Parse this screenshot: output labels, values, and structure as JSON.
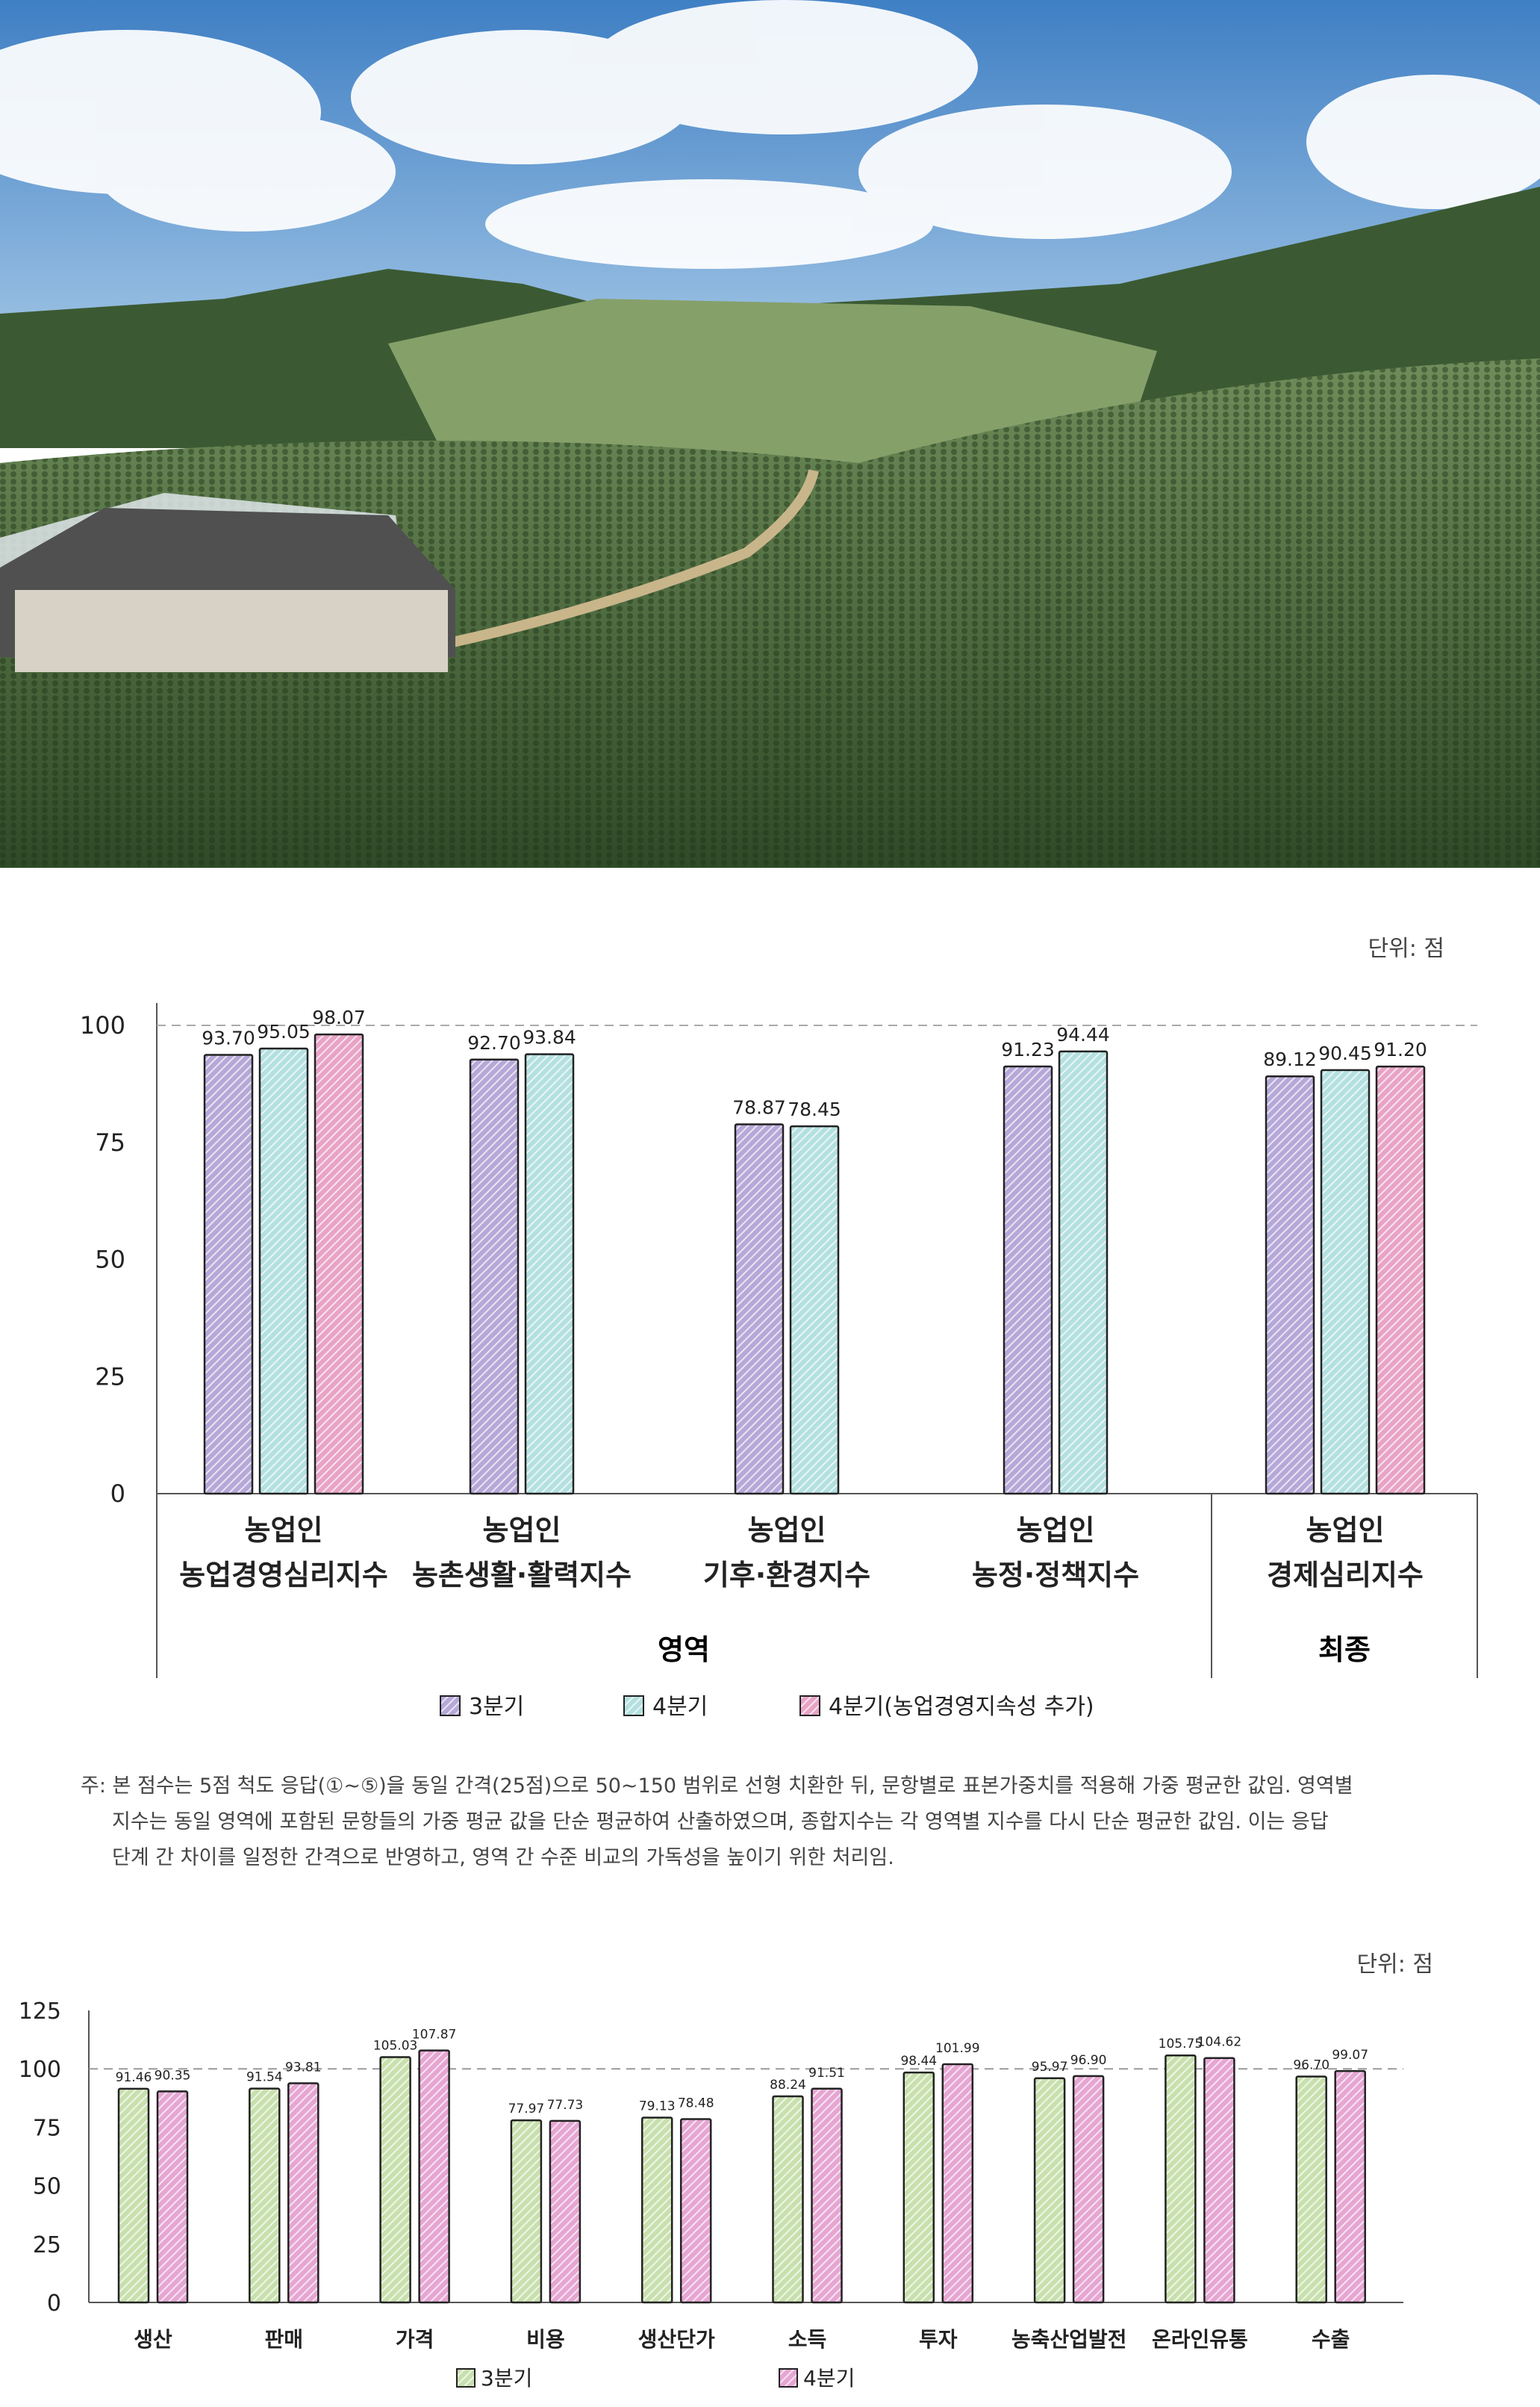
{
  "photo": {
    "subject": "cabbage-field-landscape"
  },
  "chart_data": [
    {
      "type": "bar",
      "unit_label": "단위: 점",
      "ylim": [
        0,
        100
      ],
      "yticks": [
        "0",
        "25",
        "50",
        "75",
        "100"
      ],
      "reference_line": 100,
      "grid": false,
      "legend_position": "bottom",
      "categories": [
        [
          "농업인",
          "농업경영심리지수"
        ],
        [
          "농업인",
          "농촌생활·활력지수"
        ],
        [
          "농업인",
          "기후·환경지수"
        ],
        [
          "농업인",
          "농정·정책지수"
        ],
        [
          "농업인",
          "경제심리지수"
        ]
      ],
      "groups": [
        {
          "label": "영역"
        },
        {
          "label": "최종"
        }
      ],
      "series": [
        {
          "name": "3분기",
          "color": "#b6a8d8",
          "values": [
            93.7,
            92.7,
            78.87,
            91.23,
            89.12
          ],
          "labels": [
            "93.70",
            "92.70",
            "78.87",
            "91.23",
            "89.12"
          ]
        },
        {
          "name": "4분기",
          "color": "#b4e0e0",
          "values": [
            95.05,
            93.84,
            78.45,
            94.44,
            90.45
          ],
          "labels": [
            "95.05",
            "93.84",
            "78.45",
            "94.44",
            "90.45"
          ]
        },
        {
          "name": "4분기(농업경영지속성 추가)",
          "color": "#e8a3c6",
          "values": [
            98.07,
            null,
            null,
            null,
            91.2
          ],
          "labels": [
            "98.07",
            null,
            null,
            null,
            "91.20"
          ]
        }
      ]
    },
    {
      "type": "bar",
      "unit_label": "단위: 점",
      "ylim": [
        0,
        125
      ],
      "yticks": [
        "0",
        "25",
        "50",
        "75",
        "100",
        "125"
      ],
      "reference_line": 100,
      "grid": false,
      "legend_position": "bottom",
      "categories": [
        "생산",
        "판매",
        "가격",
        "비용",
        "생산단가",
        "소득",
        "투자",
        "농축산업발전",
        "온라인유통",
        "수출"
      ],
      "series": [
        {
          "name": "3분기",
          "color": "#c8e0ae",
          "values": [
            91.46,
            91.54,
            105.03,
            77.97,
            79.13,
            88.24,
            98.44,
            95.97,
            105.75,
            96.7
          ],
          "labels": [
            "91.46",
            "91.54",
            "105.03",
            "77.97",
            "79.13",
            "88.24",
            "98.44",
            "95.97",
            "105.75",
            "96.70"
          ]
        },
        {
          "name": "4분기",
          "color": "#e6a6d2",
          "values": [
            90.35,
            93.81,
            107.87,
            77.73,
            78.48,
            91.51,
            101.99,
            96.9,
            104.62,
            99.07
          ],
          "labels": [
            "90.35",
            "93.81",
            "107.87",
            "77.73",
            "78.48",
            "91.51",
            "101.99",
            "96.90",
            "104.62",
            "99.07"
          ]
        }
      ]
    }
  ],
  "note": {
    "line1": "주: 본 점수는 5점 척도 응답(①~⑤)을 동일 간격(25점)으로 50~150 범위로 선형 치환한 뒤, 문항별로 표본가중치를 적용해 가중 평균한 값임. 영역별",
    "line2": "지수는 동일 영역에 포함된 문항들의 가중 평균 값을 단순 평균하여 산출하였으며, 종합지수는 각 영역별 지수를 다시 단순 평균한 값임. 이는 응답",
    "line3": "단계 간 차이를 일정한 간격으로 반영하고, 영역 간 수준 비교의 가독성을 높이기 위한 처리임."
  }
}
